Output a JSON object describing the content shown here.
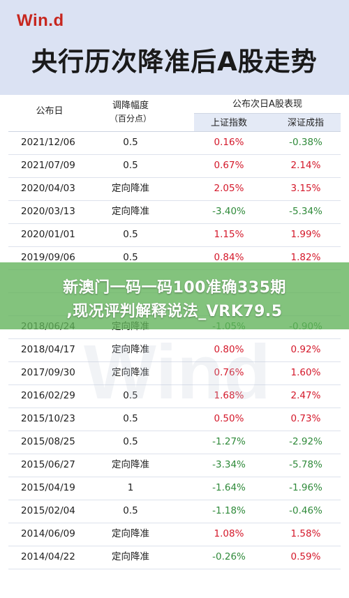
{
  "header": {
    "logo": "Win.d",
    "title": "央行历次降准后A股走势"
  },
  "table": {
    "col_date": "公布日",
    "col_rate_line1": "调降幅度",
    "col_rate_line2": "（百分点）",
    "group_header": "公布次日A股表现",
    "col_sh": "上证指数",
    "col_sz": "深证成指",
    "rows": [
      {
        "date": "2021/12/06",
        "rate": "0.5",
        "sh": "0.16%",
        "sz": "-0.38%"
      },
      {
        "date": "2021/07/09",
        "rate": "0.5",
        "sh": "0.67%",
        "sz": "2.14%"
      },
      {
        "date": "2020/04/03",
        "rate": "定向降准",
        "sh": "2.05%",
        "sz": "3.15%"
      },
      {
        "date": "2020/03/13",
        "rate": "定向降准",
        "sh": "-3.40%",
        "sz": "-5.34%"
      },
      {
        "date": "2020/01/01",
        "rate": "0.5",
        "sh": "1.15%",
        "sz": "1.99%"
      },
      {
        "date": "2019/09/06",
        "rate": "0.5",
        "sh": "0.84%",
        "sz": "1.82%"
      },
      {
        "date": "",
        "rate": "",
        "sh": "",
        "sz": ""
      },
      {
        "date": "",
        "rate": "",
        "sh": "",
        "sz": ""
      },
      {
        "date": "2018/06/24",
        "rate": "定向降准",
        "sh": "-1.05%",
        "sz": "-0.90%"
      },
      {
        "date": "2018/04/17",
        "rate": "定向降准",
        "sh": "0.80%",
        "sz": "0.92%"
      },
      {
        "date": "2017/09/30",
        "rate": "定向降准",
        "sh": "0.76%",
        "sz": "1.60%"
      },
      {
        "date": "2016/02/29",
        "rate": "0.5",
        "sh": "1.68%",
        "sz": "2.47%"
      },
      {
        "date": "2015/10/23",
        "rate": "0.5",
        "sh": "0.50%",
        "sz": "0.73%"
      },
      {
        "date": "2015/08/25",
        "rate": "0.5",
        "sh": "-1.27%",
        "sz": "-2.92%"
      },
      {
        "date": "2015/06/27",
        "rate": "定向降准",
        "sh": "-3.34%",
        "sz": "-5.78%"
      },
      {
        "date": "2015/04/19",
        "rate": "1",
        "sh": "-1.64%",
        "sz": "-1.96%"
      },
      {
        "date": "2015/02/04",
        "rate": "0.5",
        "sh": "-1.18%",
        "sz": "-0.46%"
      },
      {
        "date": "2014/06/09",
        "rate": "定向降准",
        "sh": "1.08%",
        "sz": "1.58%"
      },
      {
        "date": "2014/04/22",
        "rate": "定向降准",
        "sh": "-0.26%",
        "sz": "0.59%"
      }
    ]
  },
  "overlay": {
    "line1": "新澳门一码一码100准确335期",
    "line2": ",现况评判解释说法_VRK79.5"
  },
  "colors": {
    "positive": "#d4182a",
    "negative": "#2f8a3a",
    "header_bg": "#dbe2f3",
    "overlay": "#60b258"
  }
}
